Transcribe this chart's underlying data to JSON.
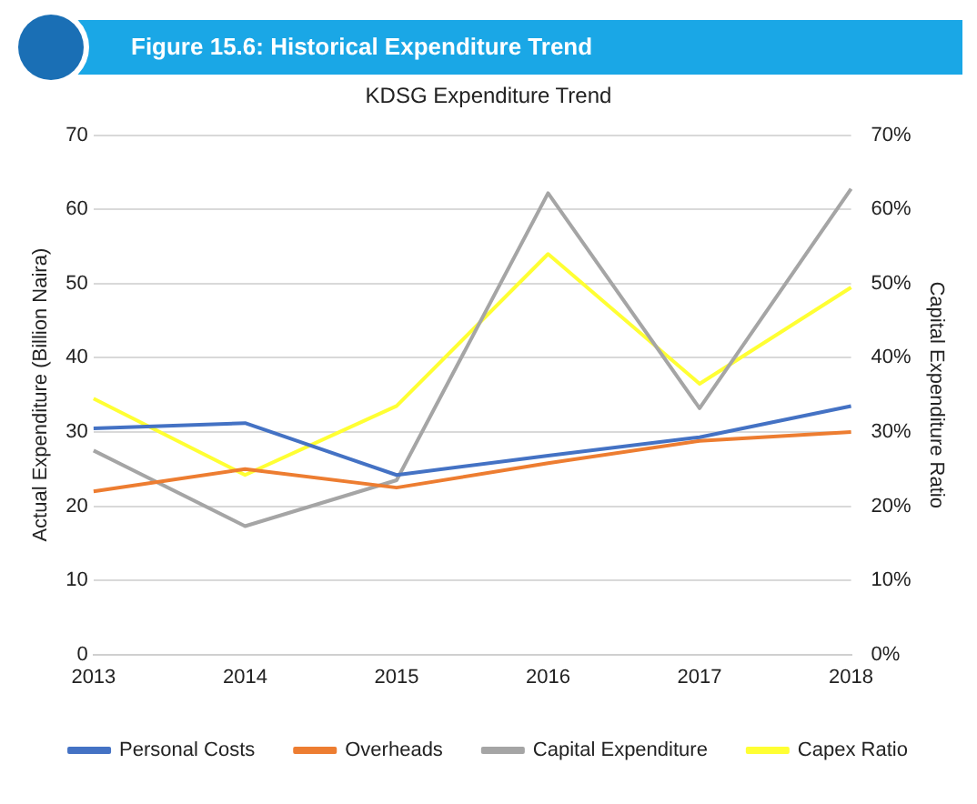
{
  "chart_data": {
    "type": "line",
    "title": "Figure 15.6: Historical Expenditure Trend",
    "subtitle": "KDSG Expenditure Trend",
    "ylabel": "Actual Expenditure (Billion Naira)",
    "y2label": "Capital Expenditure Ratio",
    "categories": [
      "2013",
      "2014",
      "2015",
      "2016",
      "2017",
      "2018"
    ],
    "series": [
      {
        "name": "Personal Costs",
        "color": "#4472c4",
        "values": [
          30.5,
          31.2,
          24.2,
          26.8,
          29.3,
          33.5
        ]
      },
      {
        "name": "Overheads",
        "color": "#ed7d31",
        "values": [
          22,
          25,
          22.5,
          25.8,
          28.8,
          30
        ]
      },
      {
        "name": "Capital Expenditure",
        "color": "#a5a5a5",
        "values": [
          27.5,
          17.3,
          23.5,
          62.2,
          33.2,
          62.8
        ]
      },
      {
        "name": "Capex Ratio",
        "color": "#ffff33",
        "axis": "y2",
        "values": [
          34.5,
          24.2,
          33.5,
          54,
          36.5,
          49.5
        ]
      }
    ],
    "ylim": [
      0,
      70
    ],
    "yticks": [
      0,
      10,
      20,
      30,
      40,
      50,
      60,
      70
    ],
    "y2lim": [
      0,
      70
    ],
    "y2ticks": [
      {
        "value": 0,
        "label": "0%"
      },
      {
        "value": 10,
        "label": "10%"
      },
      {
        "value": 20,
        "label": "20%"
      },
      {
        "value": 30,
        "label": "30%"
      },
      {
        "value": 40,
        "label": "40%"
      },
      {
        "value": 50,
        "label": "50%"
      },
      {
        "value": 60,
        "label": "60%"
      },
      {
        "value": 70,
        "label": "70%"
      }
    ],
    "grid": "y",
    "legend": "bottom",
    "marker": "none",
    "line_style": "solid"
  }
}
